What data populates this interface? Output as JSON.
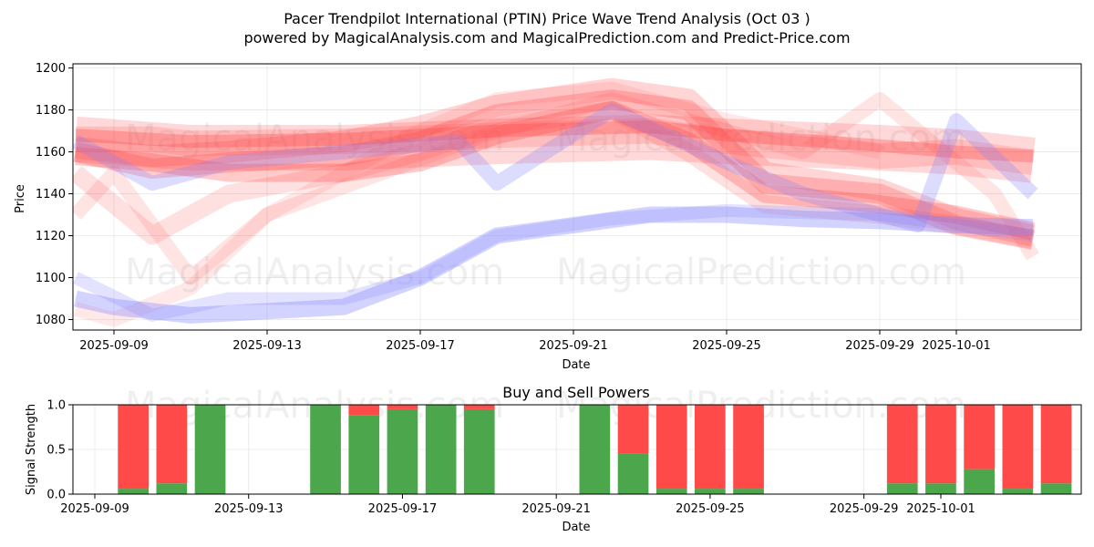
{
  "title_line1": "Pacer Trendpilot International  (PTIN) Price Wave Trend Analysis (Oct 03 )",
  "title_line2": "powered by MagicalAnalysis.com and MagicalPrediction.com and Predict-Price.com",
  "watermarks": [
    "MagicalAnalysis.com",
    "MagicalPrediction.com"
  ],
  "colors": {
    "sell": "#ff4a4a",
    "buy": "#4ca64c",
    "red_band": "#ff4040",
    "blue_band": "#8080ff"
  },
  "chart_data": [
    {
      "type": "area",
      "xlabel": "Date",
      "ylabel": "Price",
      "ylim": [
        1075,
        1202
      ],
      "xlim": [
        "2025-09-08",
        "2025-10-04"
      ],
      "x_ticks": [
        "2025-09-09",
        "2025-09-13",
        "2025-09-17",
        "2025-09-21",
        "2025-09-25",
        "2025-09-29",
        "2025-10-01"
      ],
      "y_ticks": [
        1080,
        1100,
        1120,
        1140,
        1160,
        1180,
        1200
      ],
      "grid": true,
      "series": [
        {
          "color": "red",
          "width": 28,
          "opacity": 0.18,
          "x": [
            "2025-09-08",
            "2025-09-10",
            "2025-09-11",
            "2025-09-15",
            "2025-09-19",
            "2025-09-23",
            "2025-09-25",
            "2025-09-29",
            "2025-10-01",
            "2025-10-03"
          ],
          "y": [
            1166,
            1166,
            1164,
            1165,
            1168,
            1170,
            1165,
            1158,
            1160,
            1155
          ]
        },
        {
          "color": "red",
          "width": 50,
          "opacity": 0.2,
          "x": [
            "2025-09-08",
            "2025-09-11",
            "2025-09-15",
            "2025-09-19",
            "2025-09-23",
            "2025-09-25",
            "2025-09-29",
            "2025-10-01",
            "2025-10-03"
          ],
          "y": [
            1166,
            1162,
            1162,
            1165,
            1167,
            1165,
            1162,
            1160,
            1156
          ]
        },
        {
          "color": "red",
          "width": 14,
          "opacity": 0.3,
          "x": [
            "2025-09-08",
            "2025-09-11",
            "2025-09-15",
            "2025-09-19",
            "2025-09-23",
            "2025-09-25",
            "2025-09-29",
            "2025-10-01",
            "2025-10-03"
          ],
          "y": [
            1168,
            1165,
            1166,
            1170,
            1172,
            1168,
            1163,
            1160,
            1158
          ]
        },
        {
          "color": "red",
          "width": 20,
          "opacity": 0.28,
          "x": [
            "2025-09-08",
            "2025-09-10",
            "2025-09-12",
            "2025-09-15",
            "2025-09-17",
            "2025-09-19",
            "2025-09-22",
            "2025-09-24",
            "2025-09-26",
            "2025-09-29",
            "2025-10-01",
            "2025-10-03"
          ],
          "y": [
            1158,
            1155,
            1150,
            1150,
            1155,
            1168,
            1180,
            1165,
            1140,
            1135,
            1130,
            1122
          ]
        },
        {
          "color": "red",
          "width": 22,
          "opacity": 0.25,
          "x": [
            "2025-09-08",
            "2025-09-10",
            "2025-09-12",
            "2025-09-15",
            "2025-09-17",
            "2025-09-19",
            "2025-09-22",
            "2025-09-24",
            "2025-09-26",
            "2025-09-29",
            "2025-10-01",
            "2025-10-03"
          ],
          "y": [
            1160,
            1152,
            1155,
            1158,
            1165,
            1178,
            1185,
            1180,
            1145,
            1140,
            1125,
            1118
          ]
        },
        {
          "color": "red",
          "width": 24,
          "opacity": 0.22,
          "x": [
            "2025-09-08",
            "2025-09-10",
            "2025-09-12",
            "2025-09-15",
            "2025-09-17",
            "2025-09-19",
            "2025-09-22",
            "2025-09-24",
            "2025-09-26",
            "2025-09-29",
            "2025-10-01",
            "2025-10-03"
          ],
          "y": [
            1162,
            1158,
            1160,
            1165,
            1172,
            1182,
            1190,
            1185,
            1150,
            1142,
            1128,
            1120
          ]
        },
        {
          "color": "red",
          "width": 20,
          "opacity": 0.16,
          "x": [
            "2025-09-08",
            "2025-09-10",
            "2025-09-12",
            "2025-09-15",
            "2025-09-17",
            "2025-09-19",
            "2025-09-22",
            "2025-09-24",
            "2025-09-26",
            "2025-09-29",
            "2025-10-01",
            "2025-10-03"
          ],
          "y": [
            1150,
            1120,
            1140,
            1150,
            1160,
            1172,
            1180,
            1160,
            1135,
            1130,
            1125,
            1118
          ]
        },
        {
          "color": "red",
          "width": 16,
          "opacity": 0.14,
          "x": [
            "2025-09-08",
            "2025-09-09",
            "2025-09-11",
            "2025-09-13",
            "2025-09-16",
            "2025-09-19",
            "2025-09-22",
            "2025-09-25",
            "2025-09-27",
            "2025-09-29",
            "2025-10-02",
            "2025-10-03"
          ],
          "y": [
            1130,
            1150,
            1100,
            1130,
            1150,
            1170,
            1185,
            1170,
            1160,
            1185,
            1140,
            1110
          ]
        },
        {
          "color": "red",
          "width": 16,
          "opacity": 0.12,
          "x": [
            "2025-09-08",
            "2025-09-09",
            "2025-09-11",
            "2025-09-13",
            "2025-09-15",
            "2025-09-17",
            "2025-09-19",
            "2025-09-22",
            "2025-09-25",
            "2025-09-29"
          ],
          "y": [
            1085,
            1080,
            1095,
            1130,
            1150,
            1170,
            1185,
            1190,
            1175,
            1160
          ]
        },
        {
          "color": "blue",
          "width": 18,
          "opacity": 0.35,
          "x": [
            "2025-09-08",
            "2025-09-09",
            "2025-09-11",
            "2025-09-13",
            "2025-09-15",
            "2025-09-17",
            "2025-09-19",
            "2025-09-21",
            "2025-09-23",
            "2025-09-25",
            "2025-09-27",
            "2025-09-29",
            "2025-10-01",
            "2025-10-03"
          ],
          "y": [
            1090,
            1086,
            1082,
            1084,
            1086,
            1100,
            1120,
            1125,
            1130,
            1130,
            1128,
            1127,
            1125,
            1124
          ]
        },
        {
          "color": "blue",
          "width": 14,
          "opacity": 0.22,
          "x": [
            "2025-09-08",
            "2025-09-10",
            "2025-09-12",
            "2025-09-15",
            "2025-09-17",
            "2025-09-19",
            "2025-09-22",
            "2025-09-25",
            "2025-09-29",
            "2025-10-01",
            "2025-10-03"
          ],
          "y": [
            1100,
            1082,
            1090,
            1090,
            1100,
            1120,
            1128,
            1132,
            1130,
            1125,
            1120
          ]
        },
        {
          "color": "blue",
          "width": 16,
          "opacity": 0.28,
          "x": [
            "2025-09-08",
            "2025-09-10",
            "2025-09-12",
            "2025-09-15",
            "2025-09-18",
            "2025-09-19",
            "2025-09-22",
            "2025-09-25",
            "2025-09-27",
            "2025-09-30",
            "2025-10-01",
            "2025-10-03"
          ],
          "y": [
            1165,
            1145,
            1155,
            1160,
            1165,
            1145,
            1180,
            1155,
            1140,
            1125,
            1175,
            1140
          ]
        }
      ]
    },
    {
      "type": "bar",
      "title": "Buy and Sell Powers",
      "xlabel": "Date",
      "ylabel": "Signal Strength",
      "ylim": [
        0,
        1
      ],
      "y_ticks": [
        0.0,
        0.5,
        1.0
      ],
      "x_ticks": [
        "2025-09-09",
        "2025-09-13",
        "2025-09-17",
        "2025-09-21",
        "2025-09-25",
        "2025-09-29",
        "2025-10-01"
      ],
      "stacked": true,
      "categories": [
        "2025-09-10",
        "2025-09-11",
        "2025-09-12",
        "2025-09-15",
        "2025-09-16",
        "2025-09-17",
        "2025-09-18",
        "2025-09-19",
        "2025-09-22",
        "2025-09-23",
        "2025-09-24",
        "2025-09-25",
        "2025-09-26",
        "2025-09-30",
        "2025-10-01",
        "2025-10-02",
        "2025-10-03",
        "2025-10-04"
      ],
      "series": [
        {
          "name": "Buy",
          "values": [
            0.06,
            0.12,
            1.0,
            1.0,
            0.88,
            0.95,
            1.0,
            0.95,
            1.0,
            0.45,
            0.06,
            0.06,
            0.06,
            0.12,
            0.12,
            0.28,
            0.06,
            0.12
          ]
        },
        {
          "name": "Sell",
          "values": [
            0.94,
            0.88,
            0.0,
            0.0,
            0.12,
            0.05,
            0.0,
            0.05,
            0.0,
            0.55,
            0.94,
            0.94,
            0.94,
            0.88,
            0.88,
            0.72,
            0.94,
            0.88
          ]
        }
      ]
    }
  ]
}
